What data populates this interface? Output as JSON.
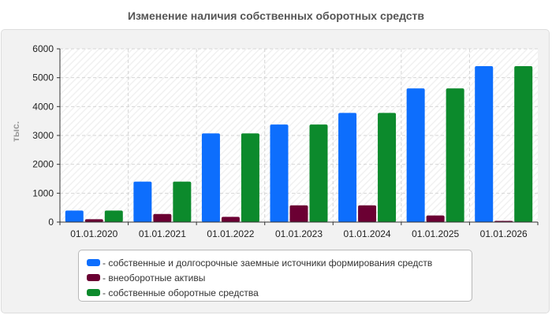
{
  "chart_data": {
    "type": "bar",
    "title": "Изменение наличия собственных оборотных средств",
    "ylabel": "тыс.",
    "xlabel": "",
    "categories": [
      "01.01.2020",
      "01.01.2021",
      "01.01.2022",
      "01.01.2023",
      "01.01.2024",
      "01.01.2025",
      "01.01.2026"
    ],
    "ylim": [
      0,
      6000
    ],
    "yticks": [
      0,
      1000,
      2000,
      3000,
      4000,
      5000,
      6000
    ],
    "grid": true,
    "legend_position": "bottom",
    "series": [
      {
        "name": "собственные и долгосрочные заемные источники формирования средств",
        "color": "#0d6efd",
        "values": [
          400,
          1400,
          3070,
          3380,
          3780,
          4630,
          5400
        ]
      },
      {
        "name": "внеоборотные активы",
        "color": "#6b0033",
        "values": [
          100,
          280,
          180,
          580,
          580,
          230,
          40
        ]
      },
      {
        "name": "собственные оборотные средства",
        "color": "#0c8a2c",
        "values": [
          400,
          1400,
          3070,
          3380,
          3780,
          4630,
          5400
        ]
      }
    ]
  }
}
